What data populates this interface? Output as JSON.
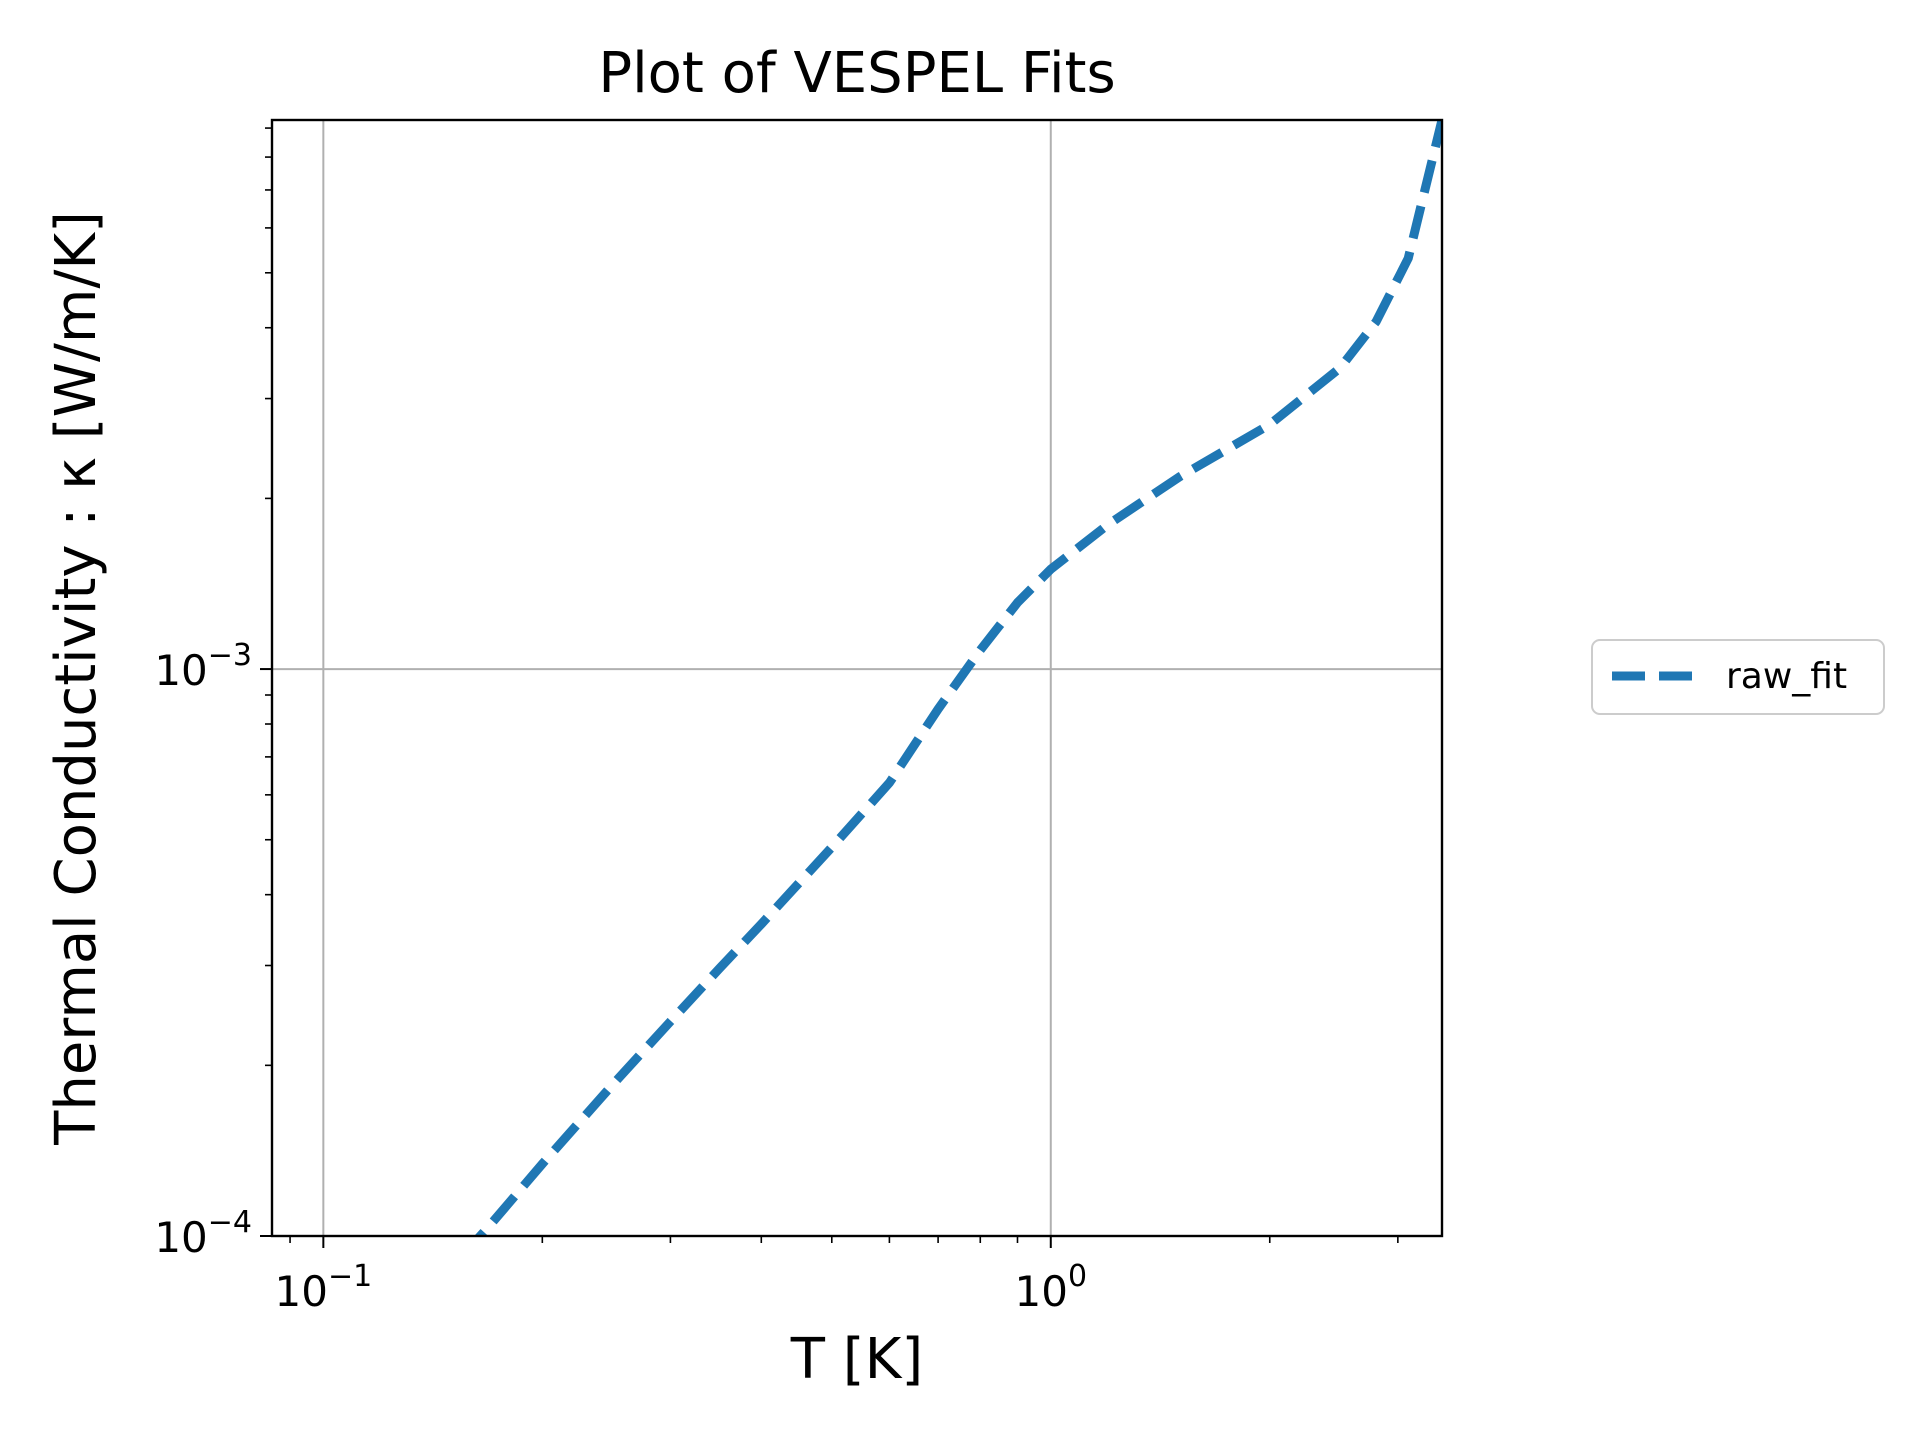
{
  "chart_data": {
    "type": "line",
    "title": "Plot of VESPEL Fits",
    "xlabel": "T [K]",
    "ylabel": "Thermal Conductivity : κ [W/m/K]",
    "xscale": "log",
    "yscale": "log",
    "xlim": [
      0.085,
      3.45
    ],
    "ylim": [
      0.0001,
      0.0093
    ],
    "grid": true,
    "legend_location": "outside-right",
    "x_ticks": [
      {
        "value": 0.1,
        "base": "10",
        "exp": "−1"
      },
      {
        "value": 1,
        "base": "10",
        "exp": "0"
      }
    ],
    "y_ticks": [
      {
        "value": 0.0001,
        "base": "10",
        "exp": "−4"
      },
      {
        "value": 0.001,
        "base": "10",
        "exp": "−3"
      }
    ],
    "series": [
      {
        "name": "raw_fit",
        "color": "#1f77b4",
        "linestyle": "dashed",
        "x": [
          0.155,
          0.17,
          0.2,
          0.25,
          0.3,
          0.35,
          0.4,
          0.5,
          0.6,
          0.7,
          0.8,
          0.9,
          1.0,
          1.2,
          1.5,
          2.0,
          2.5,
          2.8,
          3.1,
          3.45
        ],
        "y": [
          9.2e-05,
          0.000105,
          0.000134,
          0.000185,
          0.000239,
          0.000296,
          0.000355,
          0.000485,
          0.00063,
          0.00085,
          0.00108,
          0.00131,
          0.0015,
          0.0018,
          0.00218,
          0.0027,
          0.0034,
          0.0041,
          0.0053,
          0.0093
        ]
      }
    ]
  }
}
